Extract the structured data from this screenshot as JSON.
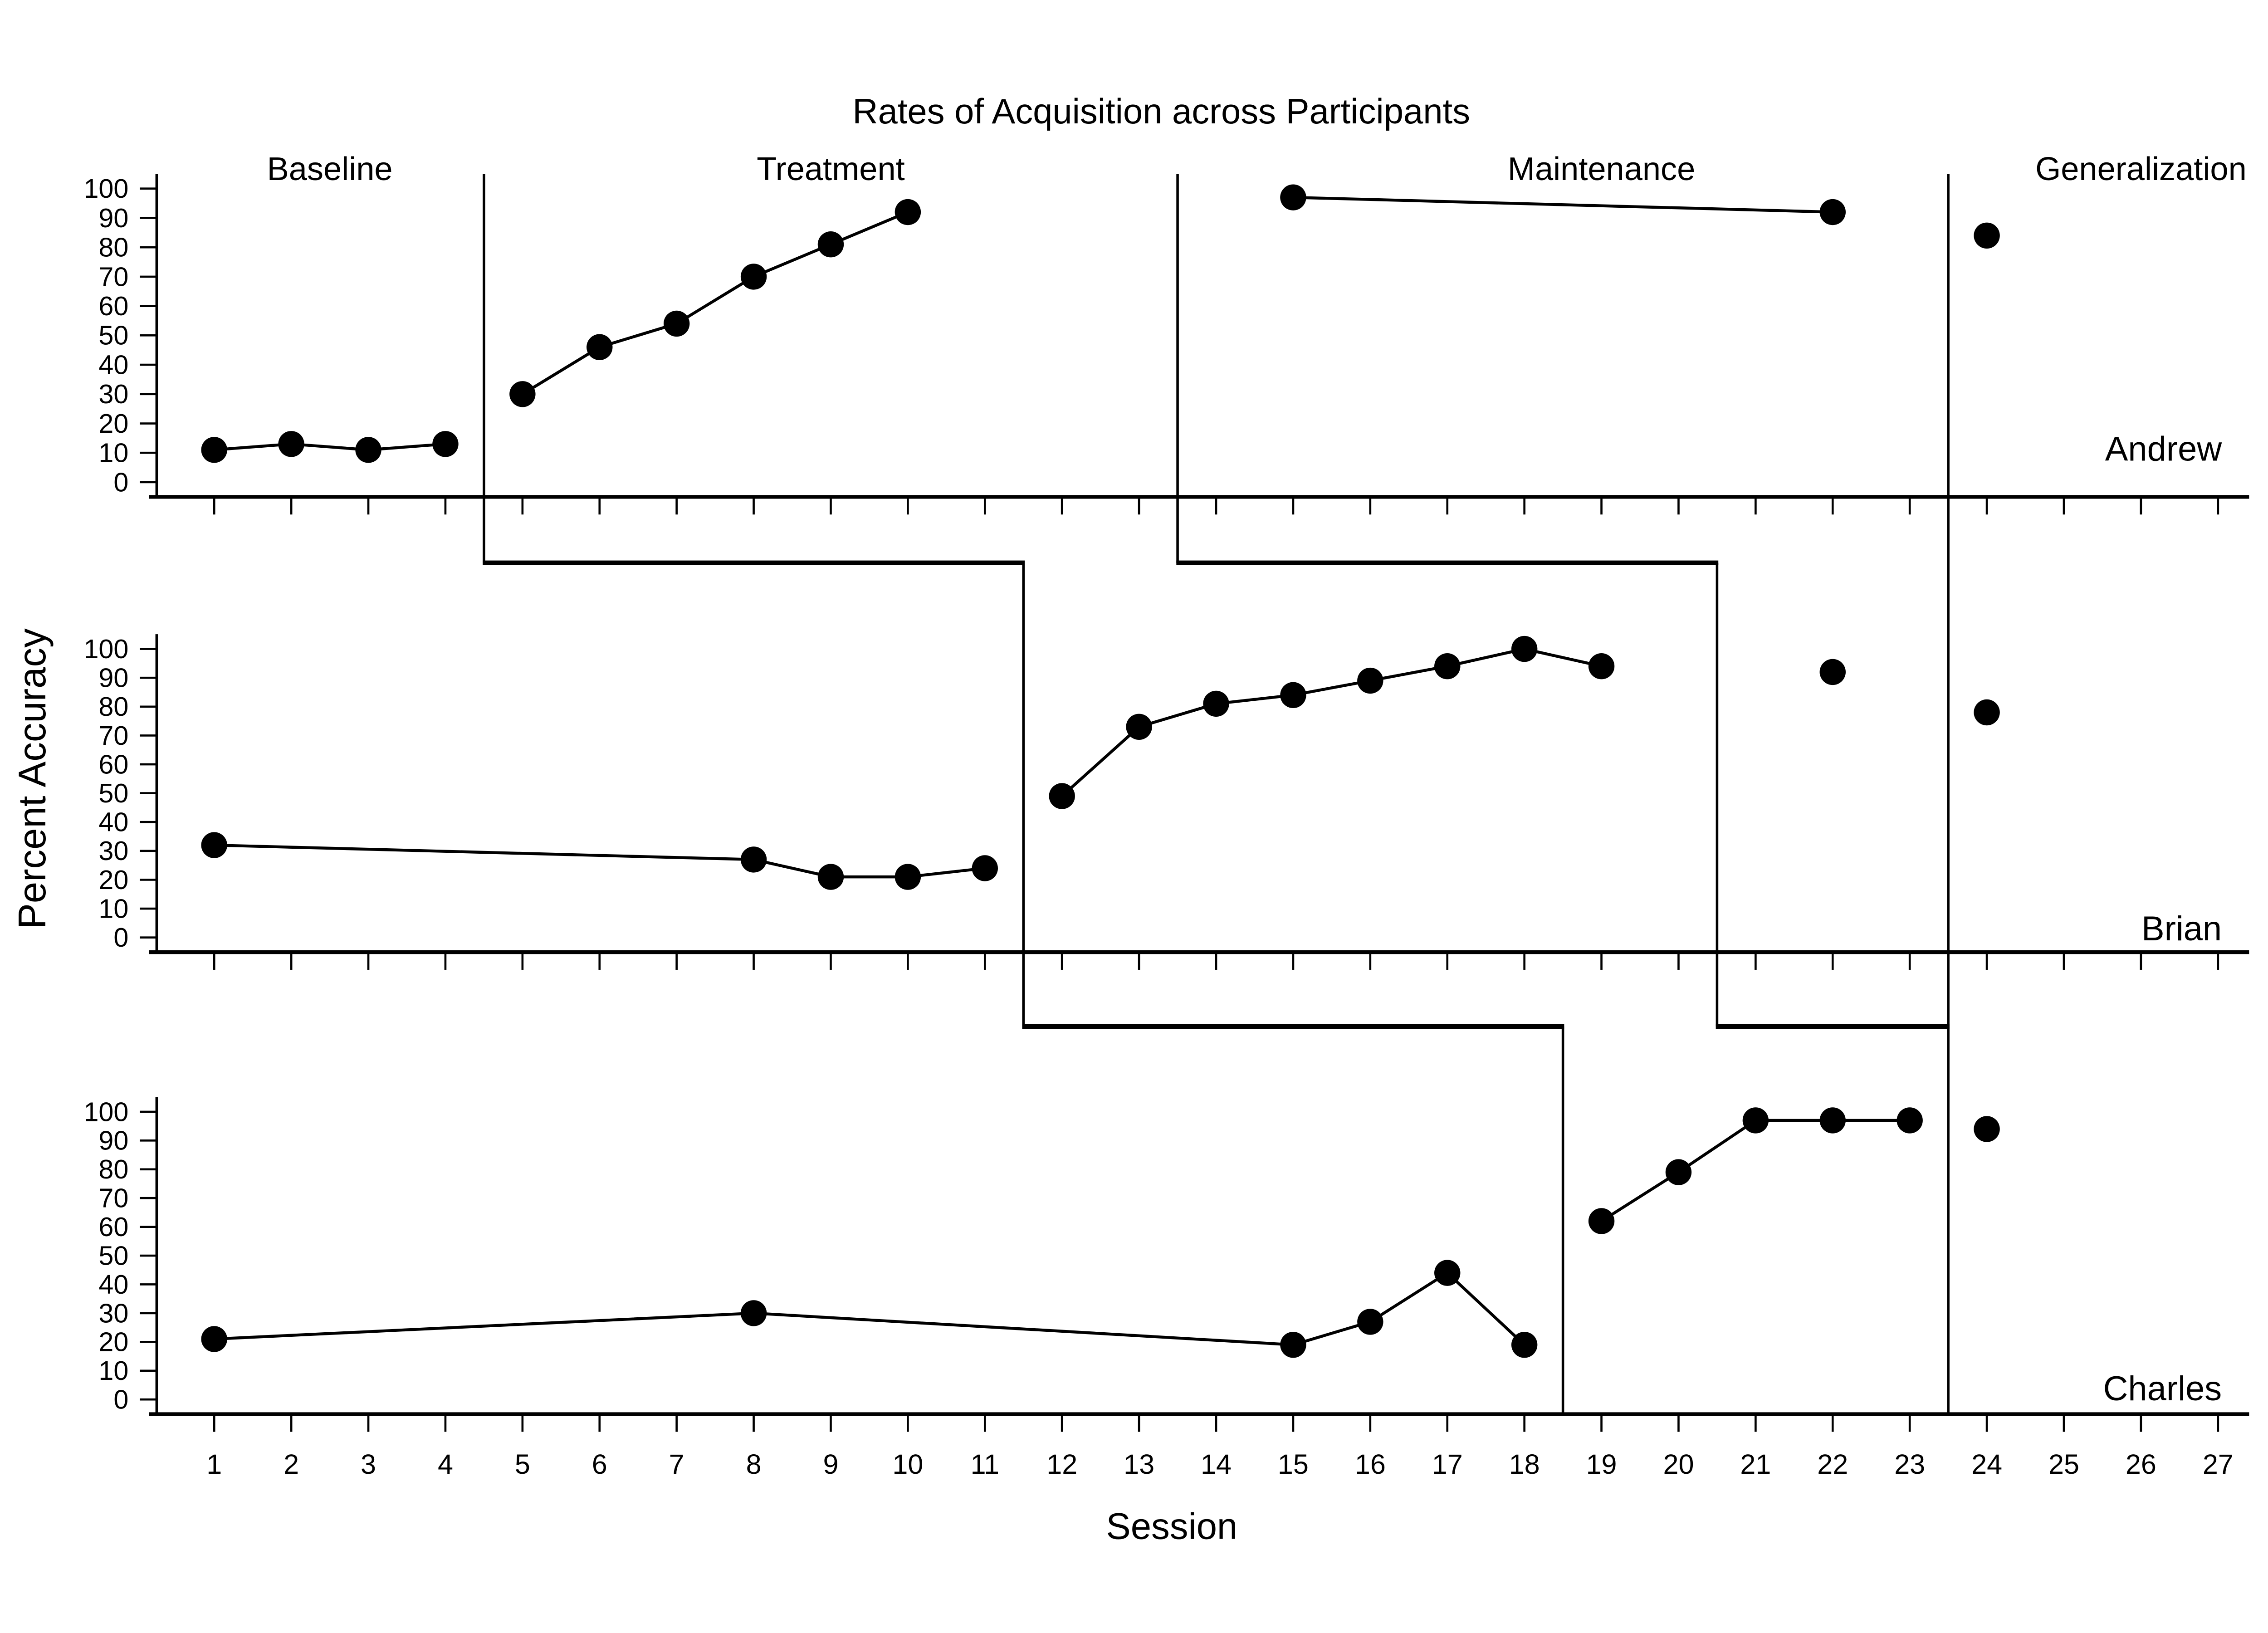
{
  "title": "Rates of Acquisition across Participants",
  "x_axis": {
    "label": "Session",
    "tick_labels": [
      1,
      2,
      3,
      4,
      5,
      6,
      7,
      8,
      9,
      10,
      11,
      12,
      13,
      14,
      15,
      16,
      17,
      18,
      19,
      20,
      21,
      22,
      23,
      24,
      25,
      26,
      27
    ]
  },
  "y_axis": {
    "label": "Percent Accuracy",
    "tick_labels": [
      0,
      10,
      20,
      30,
      40,
      50,
      60,
      70,
      80,
      90,
      100
    ]
  },
  "phase_labels": [
    {
      "label": "Baseline",
      "center_session": 2.5
    },
    {
      "label": "Treatment",
      "center_session": 9.0
    },
    {
      "label": "Maintenance",
      "center_session": 19.0
    },
    {
      "label": "Generalization",
      "center_session": 26.0
    }
  ],
  "participants": [
    "Andrew",
    "Brian",
    "Charles"
  ],
  "colors": {
    "foreground": "#000000",
    "background": "#ffffff"
  },
  "chart_data": {
    "type": "scatter",
    "title": "Rates of Acquisition across Participants",
    "xlabel": "Session",
    "ylabel": "Percent Accuracy",
    "xlim": [
      1,
      27
    ],
    "ylim": [
      0,
      100
    ],
    "grid": false,
    "legend": "none",
    "marker": "filled-circle",
    "panels": [
      {
        "participant": "Andrew",
        "series": {
          "baseline": [
            [
              1,
              11
            ],
            [
              2,
              13
            ],
            [
              3,
              11
            ],
            [
              4,
              13
            ]
          ],
          "treatment": [
            [
              5,
              30
            ],
            [
              6,
              46
            ],
            [
              7,
              54
            ],
            [
              8,
              70
            ],
            [
              9,
              81
            ],
            [
              10,
              92
            ]
          ],
          "maintenance": [
            [
              15,
              97
            ],
            [
              22,
              92
            ]
          ],
          "generalization": [
            [
              24,
              84
            ]
          ]
        },
        "phase_starts": {
          "treatment": 4.5,
          "maintenance": 13.5,
          "generalization": 23.5
        }
      },
      {
        "participant": "Brian",
        "series": {
          "baseline": [
            [
              1,
              32
            ],
            [
              8,
              27
            ],
            [
              9,
              21
            ],
            [
              10,
              21
            ],
            [
              11,
              24
            ]
          ],
          "treatment": [
            [
              12,
              49
            ],
            [
              13,
              73
            ],
            [
              14,
              81
            ],
            [
              15,
              84
            ],
            [
              16,
              89
            ],
            [
              17,
              94
            ],
            [
              18,
              100
            ],
            [
              19,
              94
            ]
          ],
          "maintenance": [
            [
              22,
              92
            ]
          ],
          "generalization": [
            [
              24,
              78
            ]
          ]
        },
        "phase_starts": {
          "treatment": 11.5,
          "maintenance": 20.5,
          "generalization": 23.5
        }
      },
      {
        "participant": "Charles",
        "series": {
          "baseline": [
            [
              1,
              21
            ],
            [
              8,
              30
            ],
            [
              15,
              19
            ],
            [
              16,
              27
            ],
            [
              17,
              44
            ],
            [
              18,
              19
            ]
          ],
          "treatment": [
            [
              19,
              62
            ],
            [
              20,
              79
            ],
            [
              21,
              97
            ],
            [
              22,
              97
            ],
            [
              23,
              97
            ]
          ],
          "maintenance": [],
          "generalization": [
            [
              24,
              94
            ]
          ]
        },
        "phase_starts": {
          "treatment": 18.5,
          "generalization": 23.5
        }
      }
    ]
  }
}
